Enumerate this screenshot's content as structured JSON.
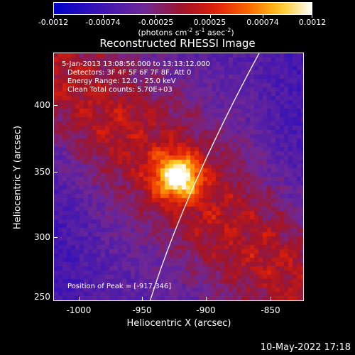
{
  "colorbar": {
    "tick_labels": [
      "-0.0012",
      "-0.00074",
      "-0.00025",
      "0.00025",
      "0.00074",
      "0.0012"
    ],
    "units_prefix": "(photons cm",
    "units_exp1": "-2",
    "units_mid1": " s",
    "units_exp2": "-1",
    "units_mid2": " asec",
    "units_exp3": "-2",
    "units_suffix": ")"
  },
  "plot": {
    "title": "Reconstructed RHESSI Image",
    "info_lines": [
      "5-Jan-2013 13:08:56.000 to 13:13:12.000",
      "Detectors: 3F 4F 5F 6F 7F 8F, Att 0",
      "Energy Range: 12.0 - 25.0 keV",
      "Clean     Total counts: 5.70E+03"
    ],
    "peak_text": "Position of Peak = [-917,346]",
    "xlabel": "Heliocentric X (arcsec)",
    "ylabel": "Heliocentric Y (arcsec)",
    "x_ticks": [
      "-1000",
      "-950",
      "-900",
      "-850"
    ],
    "y_ticks": [
      "400",
      "350",
      "300",
      "250"
    ]
  },
  "chart_data": {
    "type": "heatmap",
    "title": "Reconstructed RHESSI Image",
    "xlabel": "Heliocentric X (arcsec)",
    "ylabel": "Heliocentric Y (arcsec)",
    "xlim": [
      -1015,
      -818
    ],
    "ylim": [
      248,
      444
    ],
    "x_ticks": [
      -1000,
      -950,
      -900,
      -850
    ],
    "y_ticks": [
      250,
      300,
      350,
      400
    ],
    "colorbar_range": [
      -0.0012,
      0.0012
    ],
    "colorbar_ticks": [
      -0.0012,
      -0.00074,
      -0.00025,
      0.00025,
      0.00074,
      0.0012
    ],
    "peak": {
      "x": -917,
      "y": 346
    },
    "legend_placement": "top"
  },
  "footer": {
    "timestamp": "10-May-2022 17:18"
  }
}
